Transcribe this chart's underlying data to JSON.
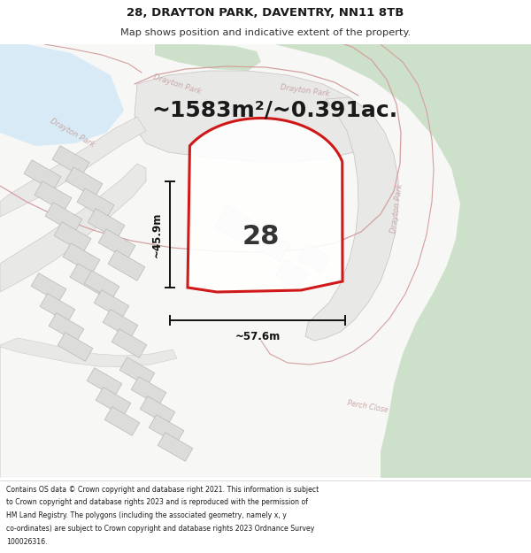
{
  "title_line1": "28, DRAYTON PARK, DAVENTRY, NN11 8TB",
  "title_line2": "Map shows position and indicative extent of the property.",
  "area_text": "~1583m²/~0.391ac.",
  "number_label": "28",
  "dim_width": "~57.6m",
  "dim_height": "~45.9m",
  "footer_lines": [
    "Contains OS data © Crown copyright and database right 2021. This information is subject",
    "to Crown copyright and database rights 2023 and is reproduced with the permission of",
    "HM Land Registry. The polygons (including the associated geometry, namely x, y",
    "co-ordinates) are subject to Crown copyright and database rights 2023 Ordnance Survey",
    "100026316."
  ],
  "bg_map_color": "#f7f7f5",
  "green_area_color": "#cde0c9",
  "blue_area_color": "#d8eaf5",
  "road_fill_color": "#e8e8e6",
  "road_edge_color": "#c8c0c0",
  "plot_outline_color": "#cc0000",
  "building_color": "#dcdcda",
  "building_edge": "#b8b8b6",
  "pink_road_color": "#d4a0a0",
  "dim_line_color": "#111111",
  "footer_bg": "#ffffff",
  "title_bg": "#ffffff",
  "title_fontsize": 9.5,
  "subtitle_fontsize": 8.2,
  "area_fontsize": 18,
  "number_fontsize": 22,
  "dim_fontsize": 8.5,
  "footer_fontsize": 5.6
}
